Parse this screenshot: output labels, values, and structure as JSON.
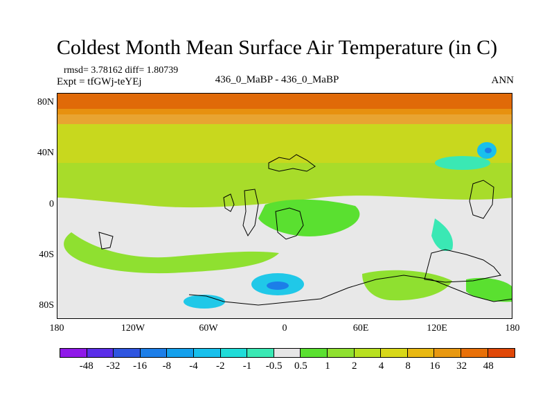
{
  "title": "Coldest Month Mean Surface Air Temperature (in C)",
  "subtitle": {
    "stats": "rmsd= 3.78162  diff= 1.80739",
    "experiment": "Expt = tfGWj-teYEj",
    "comparison": "436_0_MaBP - 436_0_MaBP",
    "season": "ANN"
  },
  "axes": {
    "y_labels": [
      "80N",
      "40N",
      "0",
      "40S",
      "80S"
    ],
    "x_labels": [
      "180",
      "120W",
      "60W",
      "0",
      "60E",
      "120E",
      "180"
    ]
  },
  "colorbar": {
    "labels": [
      "-48",
      "-32",
      "-16",
      "-8",
      "-4",
      "-2",
      "-1",
      "-0.5",
      "0.5",
      "1",
      "2",
      "4",
      "8",
      "16",
      "32",
      "48"
    ],
    "colors": [
      "#8f18e8",
      "#5a2ee8",
      "#2f55e0",
      "#1c7ee8",
      "#14a0ec",
      "#18c0ec",
      "#20dcd8",
      "#3ae8b4",
      "#e6e6e6",
      "#5ae030",
      "#8fe030",
      "#b8e020",
      "#d8d818",
      "#e8b812",
      "#e89810",
      "#e87008",
      "#e04808"
    ]
  }
}
